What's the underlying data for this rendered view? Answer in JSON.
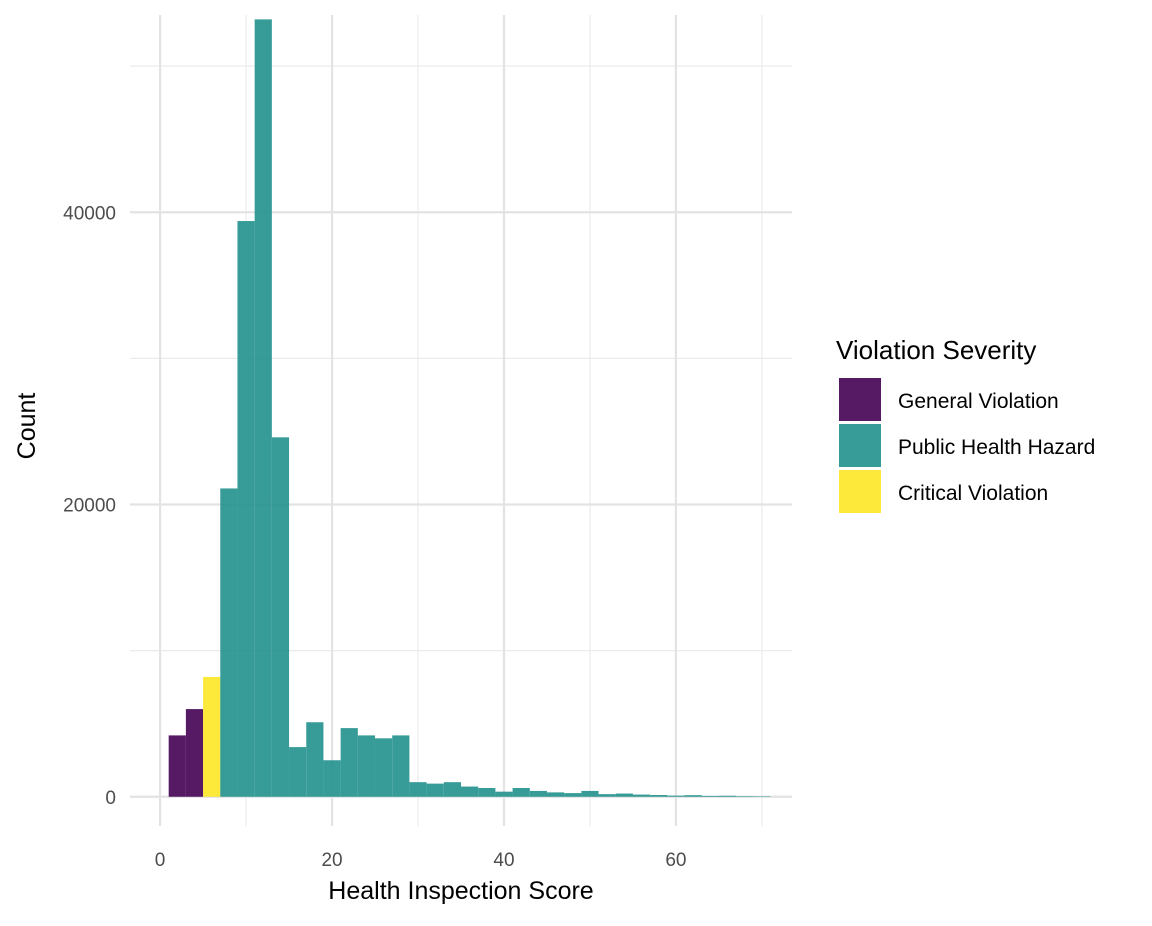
{
  "chart_data": {
    "type": "bar",
    "subtype": "histogram",
    "xlabel": "Health Inspection Score",
    "ylabel": "Count",
    "xlim": [
      -3.5,
      73.5
    ],
    "ylim": [
      -2000,
      53500
    ],
    "x_ticks": [
      0,
      20,
      40,
      60
    ],
    "x_tick_labels": [
      "0",
      "20",
      "40",
      "60"
    ],
    "x_minor_ticks": [
      10,
      30,
      50,
      70
    ],
    "y_ticks": [
      0,
      20000,
      40000
    ],
    "y_tick_labels": [
      "0",
      "20000",
      "40000"
    ],
    "y_minor_ticks": [
      10000,
      30000,
      50000
    ],
    "grid": true,
    "legend": {
      "title": "Violation Severity",
      "position": "right",
      "entries": [
        {
          "label": "General Violation",
          "color": "#440154"
        },
        {
          "label": "Public Health Hazard",
          "color": "#21908C"
        },
        {
          "label": "Critical Violation",
          "color": "#FDE725"
        }
      ]
    },
    "bin_width": 2,
    "bins": [
      {
        "x": 2,
        "value": 4200,
        "group": "General Violation"
      },
      {
        "x": 4,
        "value": 6000,
        "group": "General Violation"
      },
      {
        "x": 6,
        "value": 8200,
        "group": "Critical Violation"
      },
      {
        "x": 8,
        "value": 21100,
        "group": "Public Health Hazard"
      },
      {
        "x": 10,
        "value": 39400,
        "group": "Public Health Hazard"
      },
      {
        "x": 12,
        "value": 53200,
        "group": "Public Health Hazard"
      },
      {
        "x": 14,
        "value": 24600,
        "group": "Public Health Hazard"
      },
      {
        "x": 16,
        "value": 3400,
        "group": "Public Health Hazard"
      },
      {
        "x": 18,
        "value": 5100,
        "group": "Public Health Hazard"
      },
      {
        "x": 20,
        "value": 2500,
        "group": "Public Health Hazard"
      },
      {
        "x": 22,
        "value": 4700,
        "group": "Public Health Hazard"
      },
      {
        "x": 24,
        "value": 4200,
        "group": "Public Health Hazard"
      },
      {
        "x": 26,
        "value": 4000,
        "group": "Public Health Hazard"
      },
      {
        "x": 28,
        "value": 4200,
        "group": "Public Health Hazard"
      },
      {
        "x": 30,
        "value": 1000,
        "group": "Public Health Hazard"
      },
      {
        "x": 32,
        "value": 900,
        "group": "Public Health Hazard"
      },
      {
        "x": 34,
        "value": 1000,
        "group": "Public Health Hazard"
      },
      {
        "x": 36,
        "value": 700,
        "group": "Public Health Hazard"
      },
      {
        "x": 38,
        "value": 600,
        "group": "Public Health Hazard"
      },
      {
        "x": 40,
        "value": 350,
        "group": "Public Health Hazard"
      },
      {
        "x": 42,
        "value": 600,
        "group": "Public Health Hazard"
      },
      {
        "x": 44,
        "value": 400,
        "group": "Public Health Hazard"
      },
      {
        "x": 46,
        "value": 300,
        "group": "Public Health Hazard"
      },
      {
        "x": 48,
        "value": 250,
        "group": "Public Health Hazard"
      },
      {
        "x": 50,
        "value": 400,
        "group": "Public Health Hazard"
      },
      {
        "x": 52,
        "value": 180,
        "group": "Public Health Hazard"
      },
      {
        "x": 54,
        "value": 220,
        "group": "Public Health Hazard"
      },
      {
        "x": 56,
        "value": 150,
        "group": "Public Health Hazard"
      },
      {
        "x": 58,
        "value": 120,
        "group": "Public Health Hazard"
      },
      {
        "x": 60,
        "value": 80,
        "group": "Public Health Hazard"
      },
      {
        "x": 62,
        "value": 110,
        "group": "Public Health Hazard"
      },
      {
        "x": 64,
        "value": 60,
        "group": "Public Health Hazard"
      },
      {
        "x": 66,
        "value": 70,
        "group": "Public Health Hazard"
      },
      {
        "x": 68,
        "value": 40,
        "group": "Public Health Hazard"
      },
      {
        "x": 70,
        "value": 30,
        "group": "Public Health Hazard"
      }
    ]
  }
}
